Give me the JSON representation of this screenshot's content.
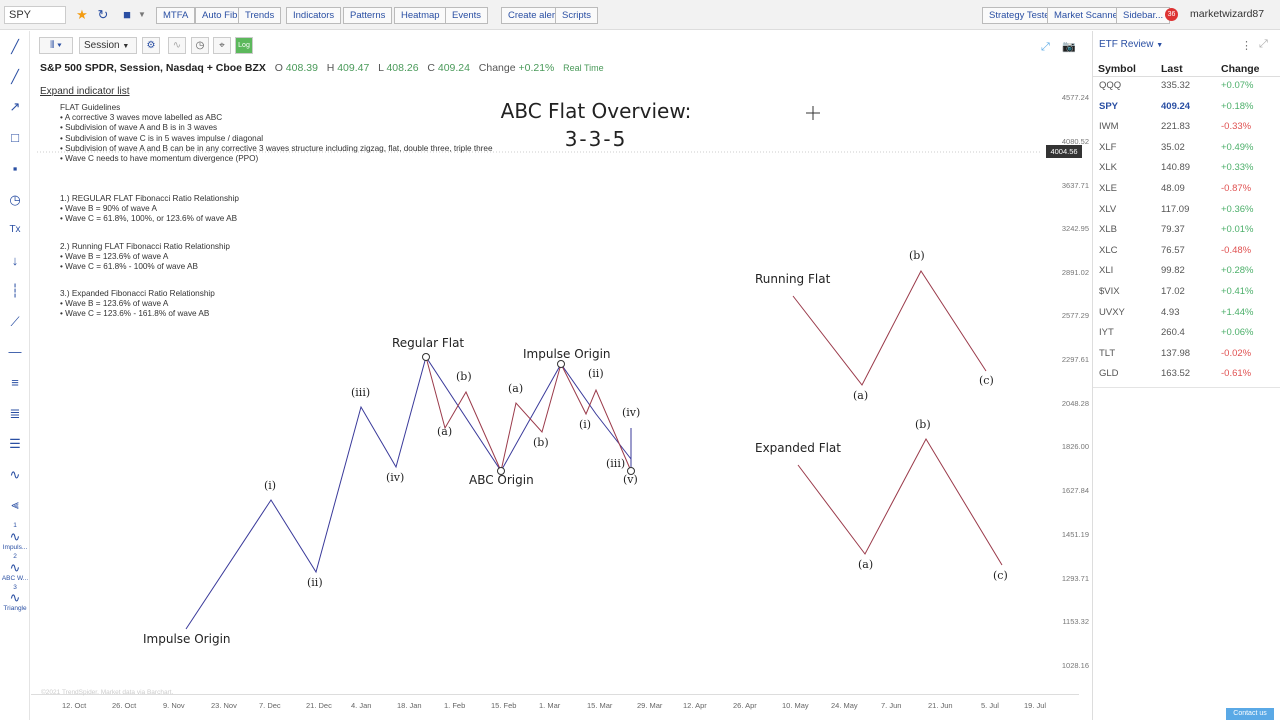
{
  "topbar": {
    "symbol": "SPY",
    "buttons": [
      "MTFA",
      "Auto Fib",
      "Trends",
      "Indicators",
      "Patterns",
      "Heatmap",
      "Events",
      "Create alert",
      "Scripts"
    ],
    "right_buttons": [
      "Strategy Tester",
      "Market Scanner",
      "Sidebar..."
    ],
    "notification_count": "36",
    "username": "marketwizard87"
  },
  "chart_toolbar": {
    "interval": "Session",
    "log": "Log"
  },
  "legend": {
    "title": "S&P 500 SPDR, Session, Nasdaq + Cboe BZX",
    "o_label": "O",
    "o": "408.39",
    "h_label": "H",
    "h": "409.47",
    "l_label": "L",
    "l": "408.26",
    "c_label": "C",
    "c": "409.24",
    "change_label": "Change",
    "change": "+0.21%",
    "realtime": "Real Time"
  },
  "expand_link": "Expand indicator list",
  "notes": {
    "flat": [
      "FLAT Guidelines",
      "• A corrective 3 waves move labelled as ABC",
      "• Subdivision of wave A and B is in 3 waves",
      "• Subdivision of wave C is in 5 waves impulse / diagonal",
      "• Subdivision of wave A and B can be in any corrective 3 waves structure including zigzag, flat, double three, triple three",
      "• Wave C needs to have momentum divergence (PPO)"
    ],
    "regular": [
      "1.) REGULAR FLAT Fibonacci Ratio Relationship",
      "• Wave B = 90% of wave A",
      "• Wave C = 61.8%, 100%, or 123.6% of wave AB"
    ],
    "running": [
      "2.) Running FLAT Fibonacci Ratio Relationship",
      "• Wave B = 123.6% of wave A",
      "• Wave C = 61.8% - 100% of wave AB"
    ],
    "expanded": [
      "3.) Expanded Fibonacci Ratio Relationship",
      "• Wave B = 123.6% of wave A",
      "• Wave C = 123.6% - 161.8% of wave AB"
    ]
  },
  "overview": {
    "line1": "ABC Flat Overview:",
    "line2": "3-3-5"
  },
  "price_axis": [
    "4577.24",
    "4080.52",
    "3637.71",
    "3242.95",
    "2891.02",
    "2577.29",
    "2297.61",
    "2048.28",
    "1826.00",
    "1627.84",
    "1451.19",
    "1293.71",
    "1153.32",
    "1028.16"
  ],
  "price_marker": "4004.56",
  "date_axis": [
    "12. Oct",
    "26. Oct",
    "9. Nov",
    "23. Nov",
    "7. Dec",
    "21. Dec",
    "4. Jan",
    "18. Jan",
    "1. Feb",
    "15. Feb",
    "1. Mar",
    "15. Mar",
    "29. Mar",
    "12. Apr",
    "26. Apr",
    "10. May",
    "24. May",
    "7. Jun",
    "21. Jun",
    "5. Jul",
    "19. Jul"
  ],
  "watermark": "©2021 TrendSpider. Market data via Barchart.",
  "wave_labels": {
    "i": "(i)",
    "ii": "(ii)",
    "iii": "(iii)",
    "iv": "(iv)",
    "v": "(v)",
    "a": "(a)",
    "b": "(b)",
    "c": "(c)"
  },
  "big_labels": {
    "impulse_origin": "Impulse Origin",
    "regular_flat": "Regular Flat",
    "abc_origin": "ABC Origin",
    "running_flat": "Running Flat",
    "expanded_flat": "Expanded Flat"
  },
  "left_tool_labels": [
    "1",
    "Impuls...",
    "2",
    "ABC W...",
    "3",
    "Triangle"
  ],
  "panel": {
    "title": "ETF Review",
    "headers": [
      "Symbol",
      "Last",
      "Change"
    ],
    "rows": [
      {
        "symbol": "QQQ",
        "last": "335.32",
        "change": "+0.07%",
        "dir": "pos"
      },
      {
        "symbol": "SPY",
        "last": "409.24",
        "change": "+0.18%",
        "dir": "pos"
      },
      {
        "symbol": "IWM",
        "last": "221.83",
        "change": "-0.33%",
        "dir": "neg"
      },
      {
        "symbol": "XLF",
        "last": "35.02",
        "change": "+0.49%",
        "dir": "pos"
      },
      {
        "symbol": "XLK",
        "last": "140.89",
        "change": "+0.33%",
        "dir": "pos"
      },
      {
        "symbol": "XLE",
        "last": "48.09",
        "change": "-0.87%",
        "dir": "neg"
      },
      {
        "symbol": "XLV",
        "last": "117.09",
        "change": "+0.36%",
        "dir": "pos"
      },
      {
        "symbol": "XLB",
        "last": "79.37",
        "change": "+0.01%",
        "dir": "pos"
      },
      {
        "symbol": "XLC",
        "last": "76.57",
        "change": "-0.48%",
        "dir": "neg"
      },
      {
        "symbol": "XLI",
        "last": "99.82",
        "change": "+0.28%",
        "dir": "pos"
      },
      {
        "symbol": "$VIX",
        "last": "17.02",
        "change": "+0.41%",
        "dir": "pos"
      },
      {
        "symbol": "UVXY",
        "last": "4.93",
        "change": "+1.44%",
        "dir": "pos"
      },
      {
        "symbol": "IYT",
        "last": "260.4",
        "change": "+0.06%",
        "dir": "pos"
      },
      {
        "symbol": "TLT",
        "last": "137.98",
        "change": "-0.02%",
        "dir": "neg"
      },
      {
        "symbol": "GLD",
        "last": "163.52",
        "change": "-0.61%",
        "dir": "neg"
      }
    ]
  },
  "contact": "Contact us",
  "colors": {
    "accent": "#2a4fa3",
    "impulse_line": "#3a3a9a",
    "flat_line": "#9a3a4a",
    "positive": "#4caf6a",
    "negative": "#e05252"
  }
}
